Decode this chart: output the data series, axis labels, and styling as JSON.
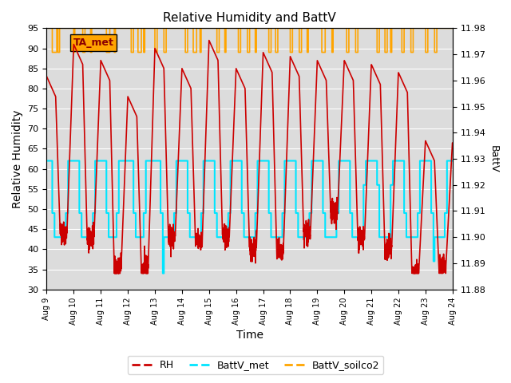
{
  "title": "Relative Humidity and BattV",
  "ylabel_left": "Relative Humidity",
  "ylabel_right": "BattV",
  "xlabel": "Time",
  "ylim_left": [
    30,
    95
  ],
  "ylim_right": [
    11.88,
    11.98
  ],
  "yticks_left": [
    30,
    35,
    40,
    45,
    50,
    55,
    60,
    65,
    70,
    75,
    80,
    85,
    90,
    95
  ],
  "yticks_right": [
    11.88,
    11.89,
    11.9,
    11.91,
    11.92,
    11.93,
    11.94,
    11.95,
    11.96,
    11.97,
    11.98
  ],
  "color_RH": "#cc0000",
  "color_batt_met": "#00e5ff",
  "color_batt_soilco2": "#ffa500",
  "color_background": "#dcdcdc",
  "color_grid": "#ffffff",
  "annotation_text": "TA_met",
  "annotation_facecolor": "#ffa500",
  "annotation_text_color": "#8b0000",
  "legend_labels": [
    "RH",
    "BattV_met",
    "BattV_soilco2"
  ],
  "xtick_labels": [
    "Aug 9",
    "Aug 10",
    "Aug 11",
    "Aug 12",
    "Aug 13",
    "Aug 14",
    "Aug 15",
    "Aug 16",
    "Aug 17",
    "Aug 18",
    "Aug 19",
    "Aug 20",
    "Aug 21",
    "Aug 22",
    "Aug 23",
    "Aug 24"
  ],
  "n_days": 15,
  "batt_met_high": 62,
  "batt_met_mid": 49,
  "batt_met_low": 43,
  "batt_met_vlow": 37,
  "batt_soilco2_high": 95,
  "batt_soilco2_low": 89
}
